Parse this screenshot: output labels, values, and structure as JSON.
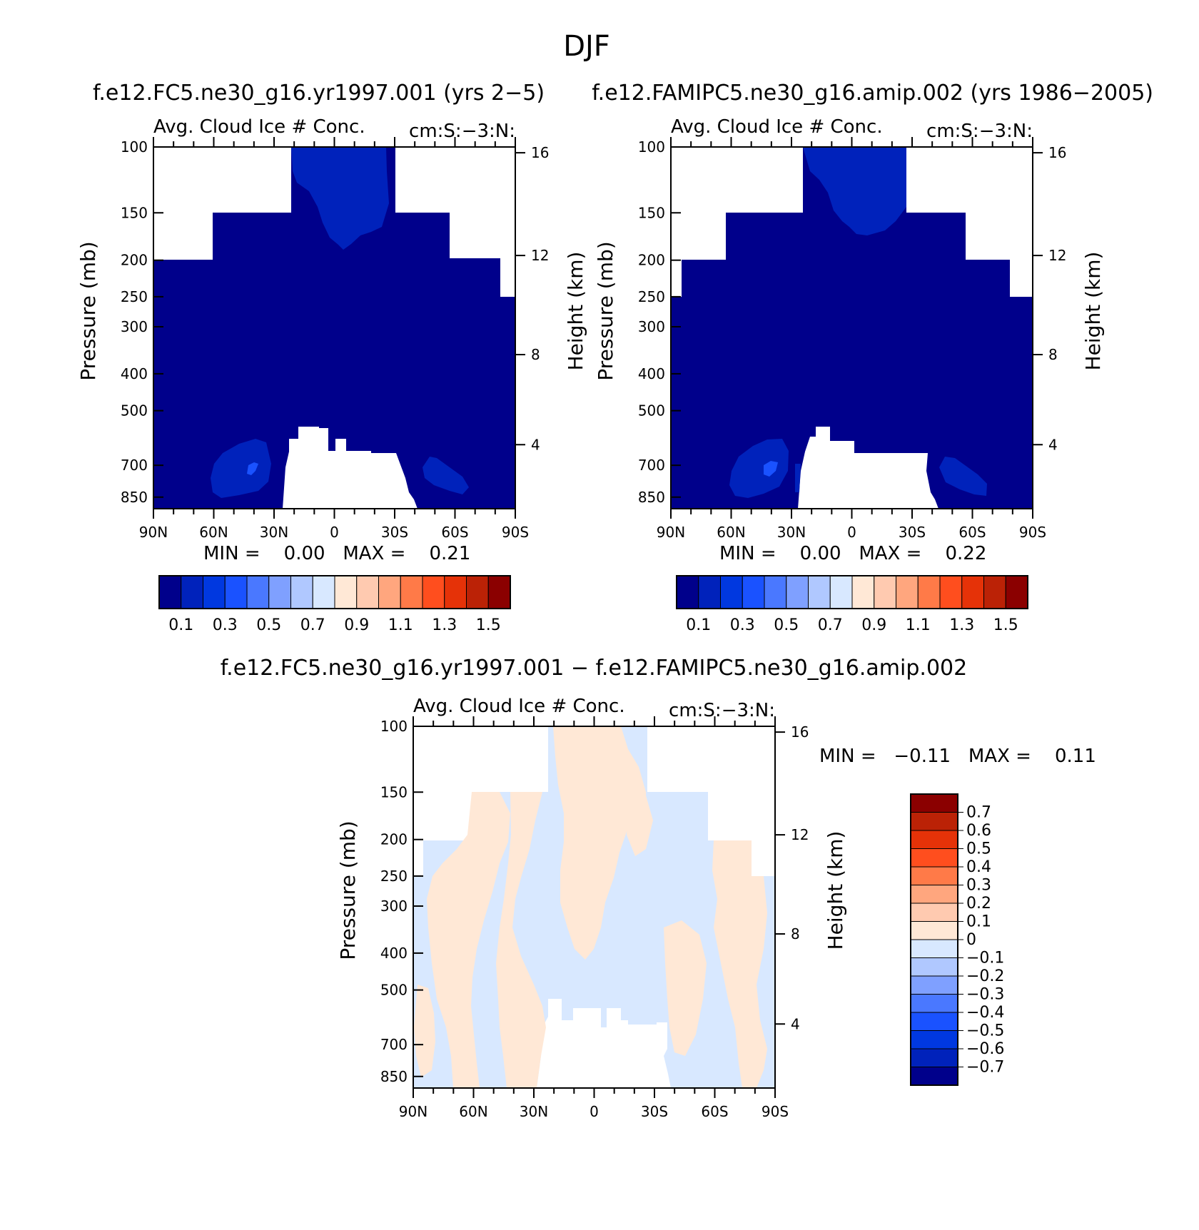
{
  "main_title": "DJF",
  "panels": [
    {
      "id": "p1",
      "title": "f.e12.FC5.ne30_g16.yr1997.001 (yrs 2−5)",
      "left_label": "Avg. Cloud Ice # Conc.",
      "right_label": "cm:S:−3:N:",
      "stats": "MIN =    0.00   MAX =    0.21"
    },
    {
      "id": "p2",
      "title": "f.e12.FAMIPC5.ne30_g16.amip.002 (yrs 1986−2005)",
      "left_label": "Avg. Cloud Ice # Conc.",
      "right_label": "cm:S:−3:N:",
      "stats": "MIN =    0.00   MAX =    0.22"
    },
    {
      "id": "p3",
      "title": "f.e12.FC5.ne30_g16.yr1997.001 − f.e12.FAMIPC5.ne30_g16.amip.002",
      "left_label": "Avg. Cloud Ice # Conc.",
      "right_label": "cm:S:−3:N:",
      "stats": "MIN =   −0.11   MAX =    0.11"
    }
  ],
  "axes": {
    "ylabel": "Pressure (mb)",
    "y2label": "Height (km)",
    "pressure_ticks": [
      "100",
      "150",
      "200",
      "250",
      "300",
      "400",
      "500",
      "700",
      "850"
    ],
    "height_ticks": [
      "16",
      "12",
      "8",
      "4"
    ],
    "x_ticks": [
      "90N",
      "60N",
      "30N",
      "0",
      "30S",
      "60S",
      "90S"
    ]
  },
  "colorbar_top": {
    "colors": [
      "#00008b",
      "#0022bb",
      "#0038e0",
      "#1a52ff",
      "#4a78ff",
      "#7fa0ff",
      "#b0c8ff",
      "#d8e8ff",
      "#ffe8d6",
      "#ffcab0",
      "#ffa67e",
      "#ff7a48",
      "#ff4e1e",
      "#e53208",
      "#bb2206",
      "#8b0000"
    ],
    "labels": [
      "0.1",
      "0.3",
      "0.5",
      "0.7",
      "0.9",
      "1.1",
      "1.3",
      "1.5"
    ]
  },
  "colorbar_diff": {
    "colors_top_to_bottom": [
      "#8b0000",
      "#bb2206",
      "#e53208",
      "#ff4e1e",
      "#ff7a48",
      "#ffa67e",
      "#ffcab0",
      "#ffe8d6",
      "#d8e8ff",
      "#b0c8ff",
      "#7fa0ff",
      "#4a78ff",
      "#1a52ff",
      "#0038e0",
      "#0022bb",
      "#00008b"
    ],
    "labels": [
      "0.7",
      "0.6",
      "0.5",
      "0.4",
      "0.3",
      "0.2",
      "0.1",
      "0",
      "−0.1",
      "−0.2",
      "−0.3",
      "−0.4",
      "−0.5",
      "−0.6",
      "−0.7"
    ]
  },
  "chart_data": [
    {
      "type": "heatmap",
      "title": "f.e12.FC5.ne30_g16.yr1997.001 (yrs 2−5)",
      "xlabel": "",
      "ylabel": "Pressure (mb)",
      "y2label": "Height (km)",
      "x_categories": [
        "90N",
        "60N",
        "30N",
        "0",
        "30S",
        "60S",
        "90S"
      ],
      "y_categories": [
        "100",
        "150",
        "200",
        "250",
        "300",
        "400",
        "500",
        "700",
        "850"
      ],
      "min": 0.0,
      "max": 0.21
    },
    {
      "type": "heatmap",
      "title": "f.e12.FAMIPC5.ne30_g16.amip.002 (yrs 1986−2005)",
      "xlabel": "",
      "ylabel": "Pressure (mb)",
      "y2label": "Height (km)",
      "x_categories": [
        "90N",
        "60N",
        "30N",
        "0",
        "30S",
        "60S",
        "90S"
      ],
      "y_categories": [
        "100",
        "150",
        "200",
        "250",
        "300",
        "400",
        "500",
        "700",
        "850"
      ],
      "min": 0.0,
      "max": 0.22
    },
    {
      "type": "heatmap",
      "title": "f.e12.FC5.ne30_g16.yr1997.001 − f.e12.FAMIPC5.ne30_g16.amip.002",
      "xlabel": "",
      "ylabel": "Pressure (mb)",
      "y2label": "Height (km)",
      "x_categories": [
        "90N",
        "60N",
        "30N",
        "0",
        "30S",
        "60S",
        "90S"
      ],
      "y_categories": [
        "100",
        "150",
        "200",
        "250",
        "300",
        "400",
        "500",
        "700",
        "850"
      ],
      "min": -0.11,
      "max": 0.11
    }
  ]
}
